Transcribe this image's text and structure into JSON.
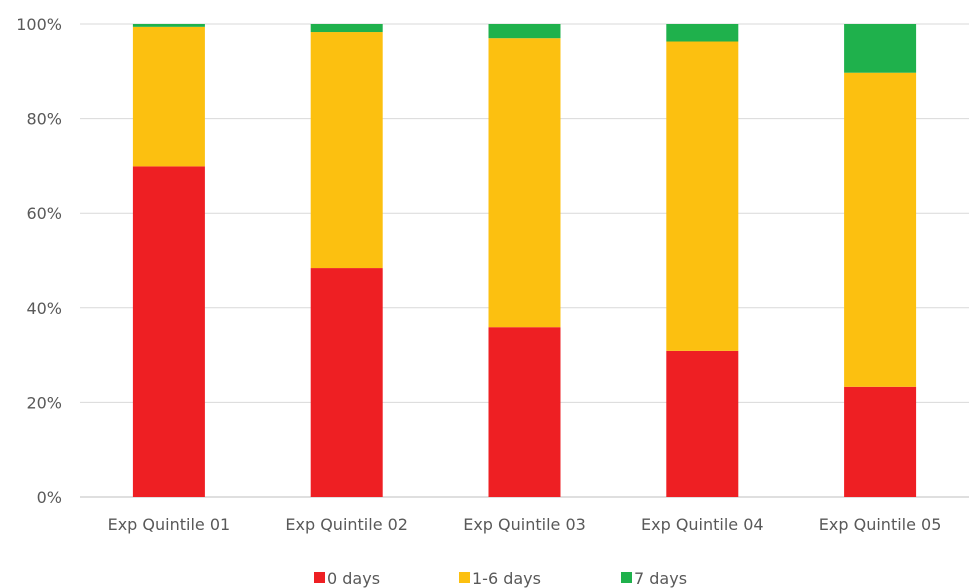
{
  "chart_data": {
    "type": "bar",
    "stacked": true,
    "percent_stacked": true,
    "title": "",
    "categories": [
      "Exp Quintile 01",
      "Exp Quintile 02",
      "Exp Quintile 03",
      "Exp Quintile 04",
      "Exp Quintile 05"
    ],
    "series": [
      {
        "name": "0 days",
        "color": "#ee1f23",
        "values": [
          69.9,
          48.4,
          35.9,
          30.9,
          23.3
        ]
      },
      {
        "name": "1-6 days",
        "color": "#fcc010",
        "values": [
          29.5,
          49.9,
          61.1,
          65.4,
          66.4
        ]
      },
      {
        "name": "7 days",
        "color": "#1fb14c",
        "values": [
          0.6,
          1.7,
          3.0,
          3.7,
          10.3
        ]
      }
    ],
    "ylim": [
      0,
      100
    ],
    "yticks": [
      "0%",
      "20%",
      "40%",
      "60%",
      "80%",
      "100%"
    ],
    "ytick_values": [
      0,
      20,
      40,
      60,
      80,
      100
    ],
    "grid": true,
    "legend_position": "bottom",
    "gridline_color": "#d9d9d9",
    "axis_color": "#bfbfbf"
  }
}
